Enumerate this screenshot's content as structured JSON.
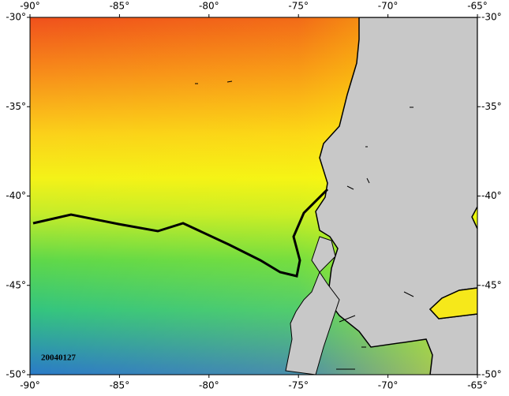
{
  "map": {
    "xlim": [
      -90,
      -65
    ],
    "ylim": [
      -50,
      -30
    ],
    "xticks": [
      {
        "value": -90,
        "label": "-90°"
      },
      {
        "value": -85,
        "label": "-85°"
      },
      {
        "value": -80,
        "label": "-80°"
      },
      {
        "value": -75,
        "label": "-75°"
      },
      {
        "value": -70,
        "label": "-70°"
      },
      {
        "value": -65,
        "label": "-65°"
      }
    ],
    "yticks": [
      {
        "value": -30,
        "label": "-30°"
      },
      {
        "value": -35,
        "label": "-35°"
      },
      {
        "value": -40,
        "label": "-40°"
      },
      {
        "value": -45,
        "label": "-45°"
      },
      {
        "value": -50,
        "label": "-50°"
      }
    ],
    "date_label": "20040127"
  }
}
